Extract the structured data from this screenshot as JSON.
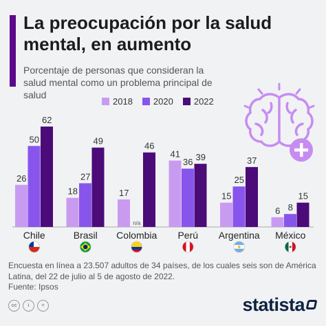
{
  "header": {
    "title": "La preocupación por la salud mental, en aumento",
    "subtitle": "Porcentaje de personas que consideran la salud mental como un problema principal de salud"
  },
  "footer": {
    "note": "Encuesta en línea a 23.507 adultos de 34 países, de los cuales seis son de América Latina, del 22 de julio al 5 de agosto de 2022.",
    "source": "Fuente: Ipsos",
    "cc_labels": [
      "cc",
      "i",
      "="
    ],
    "brand": "statista"
  },
  "colors": {
    "background": "#f1f2f4",
    "accent": "#5b0a8c",
    "s2018": "#c99bf0",
    "s2020": "#8855ec",
    "s2022": "#4b0b79",
    "decoration": "#c68cf2"
  },
  "chart_data": {
    "type": "bar",
    "categories": [
      "Chile",
      "Brasil",
      "Colombia",
      "Perú",
      "Argentina",
      "México"
    ],
    "flags": [
      "chile-flag-icon",
      "brazil-flag-icon",
      "colombia-flag-icon",
      "peru-flag-icon",
      "argentina-flag-icon",
      "mexico-flag-icon"
    ],
    "series": [
      {
        "name": "2018",
        "values": [
          26,
          18,
          17,
          41,
          15,
          6
        ],
        "labels": [
          "26",
          "18",
          "17",
          "41",
          "15",
          "6"
        ]
      },
      {
        "name": "2020",
        "values": [
          50,
          27,
          null,
          36,
          25,
          8
        ],
        "labels": [
          "50",
          "27",
          "n/a",
          "36",
          "25",
          "8"
        ]
      },
      {
        "name": "2022",
        "values": [
          62,
          49,
          46,
          39,
          37,
          15
        ],
        "labels": [
          "62",
          "49",
          "46",
          "39",
          "37",
          "15"
        ]
      }
    ],
    "ylim": [
      0,
      62
    ],
    "grid": false,
    "legend": "top"
  }
}
